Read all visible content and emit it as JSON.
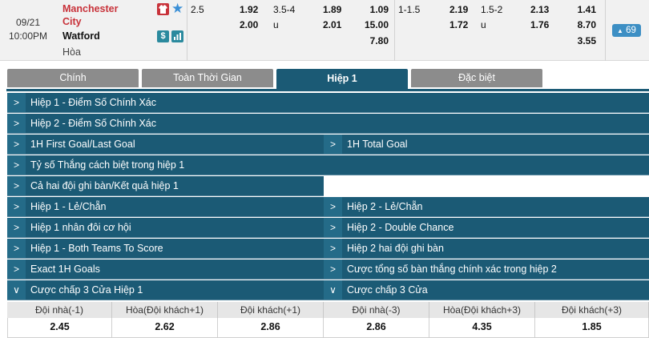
{
  "match": {
    "date": "09/21",
    "time": "10:00PM",
    "home_line1": "Manchester",
    "home_line2": "City",
    "away": "Watford",
    "draw_label": "Hòa",
    "more_count": "69",
    "ft_hdp": {
      "line_home": "2.5",
      "home": "1.92",
      "away": "2.00"
    },
    "ft_ou": {
      "line": "3.5-4",
      "over": "1.89",
      "under_label": "u",
      "under": "2.01"
    },
    "ft_1x2": {
      "home": "1.09",
      "away": "15.00",
      "draw": "7.80"
    },
    "h1_hdp": {
      "line_home": "1-1.5",
      "home": "2.19",
      "away": "1.72"
    },
    "h1_ou": {
      "line": "1.5-2",
      "over": "2.13",
      "under_label": "u",
      "under": "1.76"
    },
    "h1_1x2": {
      "home": "1.41",
      "away": "8.70",
      "draw": "3.55"
    }
  },
  "tabs": [
    "Chính",
    "Toàn Thời Gian",
    "Hiệp 1",
    "Đặc biệt"
  ],
  "markets": {
    "r1": "Hiệp 1 - Điểm Số Chính Xác",
    "r2": "Hiệp 2 - Điểm Số Chính Xác",
    "r3a": "1H First Goal/Last Goal",
    "r3b": "1H Total Goal",
    "r4": "Tỷ số Thắng cách biệt trong hiệp 1",
    "r5": "Cả hai đội ghi bàn/Kết quả hiệp 1",
    "r6a": "Hiệp 1 - Lẻ/Chẵn",
    "r6b": "Hiệp 2 - Lẻ/Chẵn",
    "r7a": "Hiệp 1 nhân đôi cơ hội",
    "r7b": "Hiệp 2 - Double Chance",
    "r8a": "Hiệp 1 - Both Teams To Score",
    "r8b": "Hiệp 2 hai đội ghi bàn",
    "r9a": "Exact 1H Goals",
    "r9b": "Cược tổng số bàn thắng chính xác trong hiệp 2",
    "r10a": "Cược chấp 3 Cửa Hiệp 1",
    "r10b": "Cược chấp 3 Cửa"
  },
  "three_way": {
    "headers": [
      "Đội nhà(-1)",
      "Hòa(Đội khách+1)",
      "Đội khách(+1)",
      "Đội nhà(-3)",
      "Hòa(Đội khách+3)",
      "Đội khách(+3)"
    ],
    "odds": [
      "2.45",
      "2.62",
      "2.86",
      "2.86",
      "4.35",
      "1.85"
    ]
  },
  "colors": {
    "accent": "#1b5a75",
    "home_team": "#c8323a",
    "badge": "#3d8fc4",
    "tab_inactive": "#8c8c8c"
  },
  "icons": [
    "shirt-icon",
    "star-icon",
    "dollar-icon",
    "stats-icon",
    "chevron-right-icon",
    "chevron-down-icon",
    "caret-up-icon"
  ]
}
